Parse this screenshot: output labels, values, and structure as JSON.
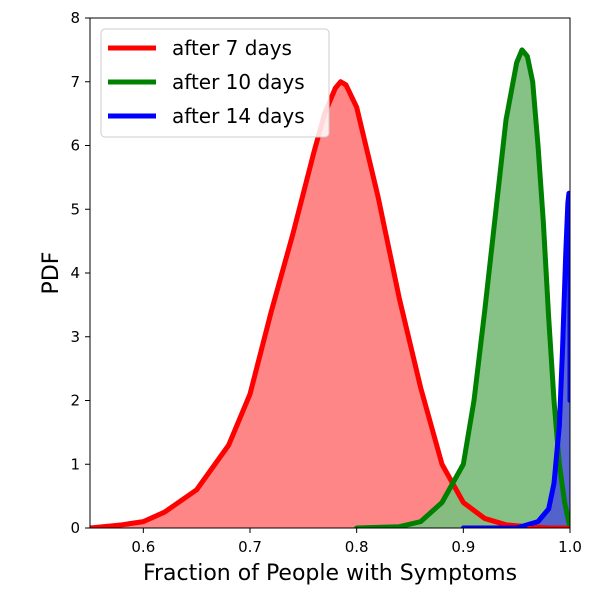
{
  "chart_data": {
    "type": "area",
    "xlabel": "Fraction of People with Symptoms",
    "ylabel": "PDF",
    "xlim": [
      0.55,
      1.0
    ],
    "ylim": [
      0,
      8
    ],
    "x_ticks": [
      "0.6",
      "0.7",
      "0.8",
      "0.9",
      "1.0"
    ],
    "y_ticks": [
      "0",
      "1",
      "2",
      "3",
      "4",
      "5",
      "6",
      "7",
      "8"
    ],
    "grid": false,
    "legend": {
      "placement": "top-left"
    },
    "series": [
      {
        "name": "after 7 days",
        "color": "#ff0000",
        "fill": "#ff7f7f",
        "x": [
          0.55,
          0.58,
          0.6,
          0.62,
          0.65,
          0.68,
          0.7,
          0.72,
          0.74,
          0.76,
          0.77,
          0.78,
          0.785,
          0.79,
          0.8,
          0.81,
          0.82,
          0.84,
          0.86,
          0.88,
          0.9,
          0.92,
          0.94,
          0.96,
          0.98,
          1.0
        ],
        "y": [
          0.0,
          0.05,
          0.1,
          0.25,
          0.6,
          1.3,
          2.1,
          3.4,
          4.6,
          5.9,
          6.5,
          6.9,
          7.0,
          6.95,
          6.6,
          5.9,
          5.2,
          3.6,
          2.2,
          1.0,
          0.4,
          0.15,
          0.05,
          0.02,
          0.0,
          0.0
        ]
      },
      {
        "name": "after 10 days",
        "color": "#008000",
        "fill": "#7fbf7f",
        "x": [
          0.8,
          0.84,
          0.86,
          0.88,
          0.9,
          0.91,
          0.92,
          0.93,
          0.94,
          0.95,
          0.955,
          0.96,
          0.965,
          0.97,
          0.975,
          0.98,
          0.985,
          0.99,
          0.995,
          1.0
        ],
        "y": [
          0.0,
          0.02,
          0.1,
          0.4,
          1.0,
          2.0,
          3.4,
          4.9,
          6.4,
          7.3,
          7.5,
          7.4,
          7.0,
          6.0,
          4.8,
          3.3,
          2.0,
          1.0,
          0.4,
          0.0
        ]
      },
      {
        "name": "after 14 days",
        "color": "#0000ff",
        "fill": "#4f5fcf",
        "x": [
          0.9,
          0.95,
          0.97,
          0.98,
          0.985,
          0.99,
          0.993,
          0.996,
          0.998,
          0.999,
          1.0,
          1.0
        ],
        "y": [
          0.0,
          0.0,
          0.1,
          0.3,
          0.7,
          1.6,
          2.8,
          4.3,
          5.1,
          5.25,
          5.0,
          2.0
        ]
      }
    ]
  }
}
